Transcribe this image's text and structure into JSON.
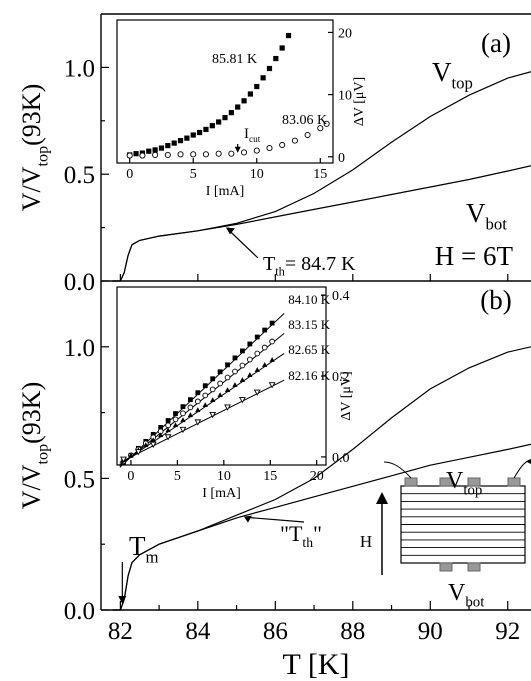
{
  "chart_data": [
    {
      "type": "line",
      "panel_label": "(a)",
      "ylabel": "V/V_top(93K)",
      "ylabel_main": "V/V",
      "ylabel_sub": "top",
      "ylabel_tail": "(93K)",
      "xlim": [
        81.5,
        92.6
      ],
      "ylim": [
        0.0,
        1.25
      ],
      "yticks": [
        "0.0",
        "0.5",
        "1.0"
      ],
      "field_label": "H = 6T",
      "series": [
        {
          "name": "V_top",
          "label_main": "V",
          "label_sub": "top",
          "x": [
            81.8,
            82.0,
            82.1,
            82.2,
            82.3,
            82.5,
            83.0,
            84.0,
            85.0,
            86.0,
            87.0,
            88.0,
            89.0,
            90.0,
            91.0,
            92.0,
            92.6
          ],
          "y": [
            0.0,
            0.0,
            0.04,
            0.12,
            0.17,
            0.19,
            0.21,
            0.235,
            0.27,
            0.325,
            0.41,
            0.52,
            0.65,
            0.77,
            0.87,
            0.95,
            0.98
          ]
        },
        {
          "name": "V_bot",
          "label_main": "V",
          "label_sub": "bot",
          "x": [
            81.8,
            82.0,
            82.1,
            82.2,
            82.3,
            82.5,
            83.0,
            84.0,
            85.0,
            86.0,
            87.0,
            88.0,
            89.0,
            90.0,
            91.0,
            92.0,
            92.6
          ],
          "y": [
            0.0,
            0.0,
            0.04,
            0.12,
            0.17,
            0.19,
            0.21,
            0.235,
            0.265,
            0.3,
            0.335,
            0.37,
            0.405,
            0.44,
            0.475,
            0.515,
            0.54
          ]
        }
      ],
      "annotation": {
        "text": "T_th = 84.7 K",
        "main": "T",
        "sub": "th",
        "tail": "= 84.7 K",
        "x": 84.7,
        "y": 0.265
      },
      "inset": {
        "xlabel": "I [mA]",
        "ylabel": "ΔV [μV]",
        "xlim": [
          -1,
          16
        ],
        "ylim": [
          -1,
          22
        ],
        "xticks": [
          0,
          5,
          10,
          15
        ],
        "yticks": [
          0,
          10,
          20
        ],
        "cut_label": {
          "main": "I",
          "sub": "cut"
        },
        "cut_x": 8.5,
        "series": [
          {
            "name": "85.81 K",
            "marker": "filled-square",
            "x": [
              0,
              0.5,
              1,
              1.5,
              2,
              2.5,
              3,
              3.5,
              4,
              4.5,
              5,
              5.5,
              6,
              6.5,
              7,
              7.5,
              8,
              8.5,
              9,
              9.5,
              10,
              10.5,
              11,
              11.5,
              12,
              12.5
            ],
            "y": [
              0.3,
              0.5,
              0.6,
              0.9,
              1.1,
              1.4,
              1.8,
              2.2,
              2.6,
              3.0,
              3.5,
              3.9,
              4.4,
              5.0,
              5.6,
              6.3,
              7.1,
              8.0,
              9.0,
              10.1,
              11.3,
              12.7,
              14.2,
              15.8,
              17.5,
              19.5
            ]
          },
          {
            "name": "83.06 K",
            "marker": "open-circle",
            "x": [
              0,
              1,
              2,
              3,
              4,
              5,
              6,
              7,
              8,
              9,
              10,
              11,
              12,
              13,
              14,
              15,
              15.5
            ],
            "y": [
              0.2,
              0.2,
              0.3,
              0.3,
              0.4,
              0.4,
              0.4,
              0.5,
              0.5,
              0.7,
              1.0,
              1.4,
              1.9,
              2.6,
              3.5,
              4.6,
              5.3
            ]
          }
        ]
      }
    },
    {
      "type": "line",
      "panel_label": "(b)",
      "ylabel": "V/V_top(93K)",
      "ylabel_main": "V/V",
      "ylabel_sub": "top",
      "ylabel_tail": "(93K)",
      "xlabel": "T [K]",
      "xlim": [
        81.5,
        92.6
      ],
      "ylim": [
        0.0,
        1.25
      ],
      "xticks": [
        82,
        84,
        86,
        88,
        90,
        92
      ],
      "yticks": [
        "0.0",
        "0.5",
        "1.0"
      ],
      "series": [
        {
          "name": "V_top",
          "x": [
            81.8,
            82.0,
            82.1,
            82.2,
            82.3,
            82.5,
            83.0,
            84.0,
            85.0,
            86.0,
            87.0,
            88.0,
            89.0,
            90.0,
            91.0,
            92.0,
            92.6
          ],
          "y": [
            0.0,
            0.0,
            0.04,
            0.13,
            0.18,
            0.21,
            0.25,
            0.3,
            0.36,
            0.42,
            0.5,
            0.61,
            0.73,
            0.84,
            0.92,
            0.98,
            1.0
          ]
        },
        {
          "name": "V_bot",
          "x": [
            81.8,
            82.0,
            82.1,
            82.2,
            82.3,
            82.5,
            83.0,
            84.0,
            85.0,
            86.0,
            87.0,
            88.0,
            89.0,
            90.0,
            91.0,
            92.0,
            92.6
          ],
          "y": [
            0.0,
            0.0,
            0.04,
            0.13,
            0.18,
            0.21,
            0.25,
            0.3,
            0.35,
            0.39,
            0.43,
            0.47,
            0.51,
            0.55,
            0.58,
            0.61,
            0.63
          ]
        }
      ],
      "tm_label": {
        "main": "T",
        "sub": "m",
        "x": 82.05
      },
      "th_label": {
        "main": "\"T",
        "sub": "th",
        "tail": "\"",
        "x": 85.5,
        "y": 0.37
      },
      "inset": {
        "xlabel": "I [mA]",
        "ylabel": "ΔV [μV]",
        "xlim": [
          -1.5,
          21
        ],
        "ylim": [
          -0.02,
          0.42
        ],
        "xticks": [
          0,
          5,
          10,
          15,
          20
        ],
        "yticks": [
          "0.0",
          "0.2",
          "0.4"
        ],
        "series": [
          {
            "name": "84.10 K",
            "marker": "filled-square",
            "slope": 0.0215,
            "xmax": 16.5
          },
          {
            "name": "83.15 K",
            "marker": "open-circle",
            "slope": 0.0185,
            "xmax": 16.5
          },
          {
            "name": "82.65 K",
            "marker": "filled-triangle",
            "slope": 0.0155,
            "xmax": 16.5
          },
          {
            "name": "82.16 K",
            "marker": "open-triangle-down",
            "slope": 0.0115,
            "xmax": 16.5
          }
        ]
      },
      "schematic": {
        "field": "H",
        "top_main": "V",
        "top_sub": "top",
        "bot_main": "V",
        "bot_sub": "bot"
      }
    }
  ]
}
